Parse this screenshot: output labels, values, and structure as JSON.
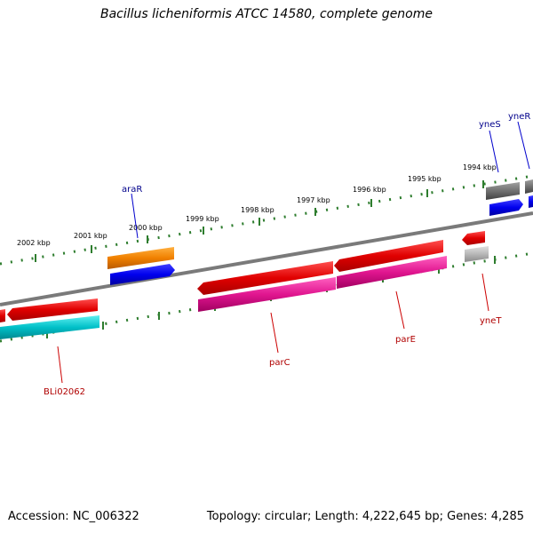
{
  "title": "Bacillus licheniformis ATCC 14580, complete genome",
  "footer": {
    "accession": "Accession: NC_006322",
    "summary": "Topology: circular; Length: 4,222,645 bp; Genes: 4,285"
  },
  "scale_labels": [
    "2002 kbp",
    "2001 kbp",
    "2000 kbp",
    "1999 kbp",
    "1998 kbp",
    "1997 kbp",
    "1996 kbp",
    "1995 kbp",
    "1994 kbp"
  ],
  "genes": [
    {
      "id": "yneR",
      "label": "yneR",
      "label_color": "#00008b"
    },
    {
      "id": "yneS",
      "label": "yneS",
      "label_color": "#00008b"
    },
    {
      "id": "araR",
      "label": "araR",
      "label_color": "#00008b"
    },
    {
      "id": "BLi02062",
      "label": "BLi02062",
      "label_color": "#b00000"
    },
    {
      "id": "parC",
      "label": "parC",
      "label_color": "#b00000"
    },
    {
      "id": "parE",
      "label": "parE",
      "label_color": "#b00000"
    },
    {
      "id": "yneT",
      "label": "yneT",
      "label_color": "#b00000"
    }
  ],
  "colors": {
    "backbone": "#7a7a7a",
    "scale_ticks": "#2e7d2e",
    "cds_red": "#e00000",
    "cds_blue": "#0000ee",
    "cds_orange": "#f08000",
    "cds_gray": "#707070",
    "cds_magenta": "#e0158f",
    "cds_cyan": "#00c0c8",
    "cds_lightgray": "#b8b8b8"
  }
}
